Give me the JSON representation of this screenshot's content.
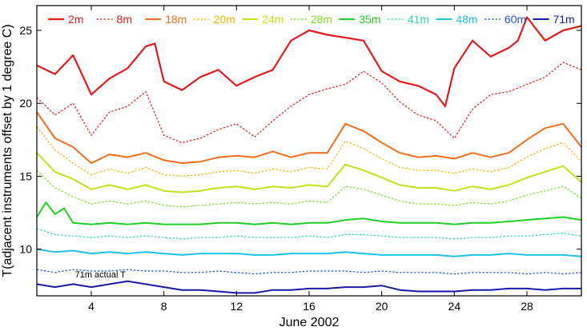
{
  "chart_data": {
    "type": "line",
    "title": "",
    "xlabel": "June 2002",
    "ylabel": "T(adjacent instruments offset by 1 degree C)",
    "xlim": [
      1,
      31
    ],
    "ylim": [
      6.8,
      26.7
    ],
    "x_ticks": [
      4,
      8,
      12,
      16,
      20,
      24,
      28
    ],
    "y_ticks": [
      10,
      15,
      20,
      25
    ],
    "grid": false,
    "legend_position": "top",
    "annotation": "71m actual T",
    "series": [
      {
        "name": "2m",
        "color": "#e41a1c",
        "style": "solid",
        "width": 2.2,
        "x": [
          1,
          2,
          3,
          4,
          5,
          6,
          7,
          7.5,
          8,
          9,
          10,
          11,
          12,
          13,
          14,
          15,
          16,
          17,
          18,
          19,
          20,
          21,
          22,
          23,
          23.5,
          24,
          25,
          26,
          27,
          27.5,
          28,
          29,
          30,
          31
        ],
        "y": [
          22.6,
          22.0,
          23.3,
          20.6,
          21.7,
          22.4,
          23.9,
          24.1,
          21.5,
          20.9,
          21.8,
          22.3,
          21.2,
          21.8,
          22.3,
          24.3,
          25.0,
          24.7,
          24.5,
          24.3,
          22.2,
          21.5,
          21.2,
          20.6,
          19.8,
          22.4,
          24.3,
          23.2,
          23.8,
          24.3,
          25.9,
          24.3,
          25.0,
          25.3
        ]
      },
      {
        "name": "8m",
        "color": "#e41a1c",
        "style": "dotted",
        "width": 1.2,
        "x": [
          1,
          2,
          3,
          4,
          5,
          6,
          7,
          8,
          9,
          10,
          11,
          12,
          13,
          14,
          15,
          16,
          17,
          18,
          19,
          20,
          21,
          22,
          23,
          24,
          25,
          26,
          27,
          28,
          29,
          30,
          31
        ],
        "y": [
          20.4,
          19.2,
          20.0,
          17.8,
          19.4,
          19.8,
          20.8,
          17.8,
          17.3,
          17.6,
          18.2,
          18.6,
          17.7,
          18.8,
          19.8,
          20.6,
          21.0,
          21.3,
          22.2,
          21.4,
          20.1,
          19.2,
          18.8,
          17.6,
          19.6,
          20.6,
          20.8,
          21.3,
          21.8,
          22.8,
          22.3
        ]
      },
      {
        "name": "18m",
        "color": "#f46d1a",
        "style": "solid",
        "width": 2.0,
        "x": [
          1,
          2,
          3,
          4,
          5,
          6,
          7,
          8,
          9,
          10,
          11,
          12,
          13,
          14,
          15,
          16,
          17,
          18,
          19,
          20,
          21,
          22,
          23,
          24,
          25,
          26,
          27,
          28,
          29,
          30,
          31
        ],
        "y": [
          19.4,
          17.6,
          17.0,
          15.9,
          16.5,
          16.3,
          16.6,
          16.1,
          15.9,
          16.0,
          16.3,
          16.4,
          16.3,
          16.7,
          16.3,
          16.6,
          16.6,
          18.6,
          18.1,
          17.3,
          16.6,
          16.3,
          16.4,
          16.2,
          16.6,
          16.3,
          16.6,
          17.5,
          18.3,
          18.6,
          17.0
        ]
      },
      {
        "name": "20m",
        "color": "#f0b400",
        "style": "dotted",
        "width": 1.2,
        "x": [
          1,
          2,
          3,
          4,
          5,
          6,
          7,
          8,
          9,
          10,
          11,
          12,
          13,
          14,
          15,
          16,
          17,
          18,
          19,
          20,
          21,
          22,
          23,
          24,
          25,
          26,
          27,
          28,
          29,
          30,
          31
        ],
        "y": [
          18.4,
          16.8,
          15.9,
          15.1,
          15.5,
          15.2,
          15.6,
          15.1,
          15.0,
          15.1,
          15.3,
          15.4,
          15.2,
          15.5,
          15.3,
          15.6,
          15.5,
          17.4,
          16.9,
          16.2,
          15.6,
          15.4,
          15.4,
          15.2,
          15.5,
          15.3,
          15.6,
          16.3,
          16.9,
          17.3,
          16.0
        ]
      },
      {
        "name": "24m",
        "color": "#c7e01c",
        "style": "solid",
        "width": 2.0,
        "x": [
          1,
          2,
          3,
          4,
          5,
          6,
          7,
          8,
          9,
          10,
          11,
          12,
          13,
          14,
          15,
          16,
          17,
          18,
          19,
          20,
          21,
          22,
          23,
          24,
          25,
          26,
          27,
          28,
          29,
          30,
          31
        ],
        "y": [
          16.6,
          15.3,
          14.8,
          14.1,
          14.4,
          14.1,
          14.4,
          14.0,
          13.9,
          14.0,
          14.2,
          14.3,
          14.1,
          14.3,
          14.2,
          14.4,
          14.3,
          15.8,
          15.4,
          14.9,
          14.4,
          14.2,
          14.2,
          14.0,
          14.3,
          14.1,
          14.4,
          14.9,
          15.3,
          15.7,
          14.6
        ]
      },
      {
        "name": "28m",
        "color": "#7ddc1f",
        "style": "dotted",
        "width": 1.2,
        "x": [
          1,
          2,
          3,
          4,
          5,
          6,
          7,
          8,
          9,
          10,
          11,
          12,
          13,
          14,
          15,
          16,
          17,
          18,
          19,
          20,
          21,
          22,
          23,
          24,
          25,
          26,
          27,
          28,
          29,
          30,
          31
        ],
        "y": [
          15.4,
          14.2,
          13.6,
          13.1,
          13.3,
          13.1,
          13.3,
          13.0,
          12.9,
          13.0,
          13.1,
          13.2,
          13.1,
          13.2,
          13.1,
          13.3,
          13.2,
          14.3,
          14.1,
          13.7,
          13.3,
          13.1,
          13.1,
          13.0,
          13.2,
          13.1,
          13.3,
          13.7,
          14.0,
          14.3,
          13.5
        ]
      },
      {
        "name": "35m",
        "color": "#20d020",
        "style": "solid",
        "width": 2.0,
        "x": [
          1,
          1.5,
          2,
          2.5,
          3,
          4,
          5,
          6,
          7,
          8,
          9,
          10,
          11,
          12,
          13,
          14,
          15,
          16,
          17,
          18,
          19,
          20,
          21,
          22,
          23,
          24,
          25,
          26,
          27,
          28,
          29,
          30,
          31
        ],
        "y": [
          12.2,
          13.2,
          12.4,
          12.8,
          11.8,
          11.7,
          11.8,
          11.7,
          11.8,
          11.7,
          11.7,
          11.7,
          11.8,
          11.8,
          11.7,
          11.8,
          11.7,
          11.8,
          11.8,
          12.0,
          12.1,
          11.9,
          11.8,
          11.8,
          11.8,
          11.7,
          11.8,
          11.8,
          11.9,
          12.0,
          12.1,
          12.2,
          12.0
        ]
      },
      {
        "name": "41m",
        "color": "#27d6b4",
        "style": "dotted",
        "width": 1.2,
        "x": [
          1,
          2,
          3,
          4,
          5,
          6,
          7,
          8,
          9,
          10,
          11,
          12,
          13,
          14,
          15,
          16,
          17,
          18,
          19,
          20,
          21,
          22,
          23,
          24,
          25,
          26,
          27,
          28,
          29,
          30,
          31
        ],
        "y": [
          11.4,
          11.0,
          10.9,
          10.8,
          10.9,
          10.8,
          10.9,
          10.8,
          10.7,
          10.8,
          10.8,
          10.9,
          10.8,
          10.8,
          10.8,
          10.9,
          10.8,
          11.0,
          11.0,
          10.9,
          10.8,
          10.8,
          10.8,
          10.7,
          10.8,
          10.8,
          10.9,
          10.9,
          11.0,
          11.1,
          10.9
        ]
      },
      {
        "name": "48m",
        "color": "#1ec2e8",
        "style": "solid",
        "width": 2.0,
        "x": [
          1,
          2,
          3,
          4,
          5,
          6,
          7,
          8,
          9,
          10,
          11,
          12,
          13,
          14,
          15,
          16,
          17,
          18,
          19,
          20,
          21,
          22,
          23,
          24,
          25,
          26,
          27,
          28,
          29,
          30,
          31
        ],
        "y": [
          10.0,
          9.8,
          9.9,
          9.7,
          9.8,
          9.7,
          9.8,
          9.7,
          9.6,
          9.7,
          9.7,
          9.7,
          9.6,
          9.6,
          9.7,
          9.7,
          9.7,
          9.8,
          9.7,
          9.6,
          9.6,
          9.6,
          9.6,
          9.5,
          9.6,
          9.6,
          9.7,
          9.6,
          9.6,
          9.6,
          9.5
        ]
      },
      {
        "name": "60m",
        "color": "#2255cc",
        "style": "dotted",
        "width": 1.2,
        "x": [
          1,
          2,
          3,
          4,
          5,
          6,
          7,
          8,
          9,
          10,
          11,
          12,
          13,
          14,
          15,
          16,
          17,
          18,
          19,
          20,
          21,
          22,
          23,
          24,
          25,
          26,
          27,
          28,
          29,
          30,
          31
        ],
        "y": [
          8.6,
          8.4,
          8.6,
          8.5,
          8.5,
          8.6,
          8.5,
          8.5,
          8.4,
          8.4,
          8.5,
          8.4,
          8.3,
          8.4,
          8.4,
          8.5,
          8.5,
          8.5,
          8.4,
          8.5,
          8.4,
          8.4,
          8.4,
          8.3,
          8.4,
          8.4,
          8.4,
          8.3,
          8.4,
          8.3,
          8.4
        ]
      },
      {
        "name": "71m",
        "color": "#1a1aaa",
        "style": "solid",
        "width": 2.0,
        "x": [
          1,
          2,
          3,
          4,
          5,
          6,
          7,
          8,
          9,
          10,
          11,
          12,
          13,
          14,
          15,
          16,
          17,
          18,
          19,
          20,
          21,
          22,
          23,
          24,
          25,
          26,
          27,
          28,
          29,
          30,
          31
        ],
        "y": [
          7.6,
          7.4,
          7.6,
          7.4,
          7.6,
          7.8,
          7.6,
          7.4,
          7.2,
          7.2,
          7.1,
          7.0,
          7.0,
          7.2,
          7.2,
          7.3,
          7.3,
          7.4,
          7.4,
          7.5,
          7.2,
          7.1,
          7.1,
          7.1,
          7.2,
          7.2,
          7.3,
          7.3,
          7.2,
          7.3,
          7.3
        ]
      }
    ]
  }
}
